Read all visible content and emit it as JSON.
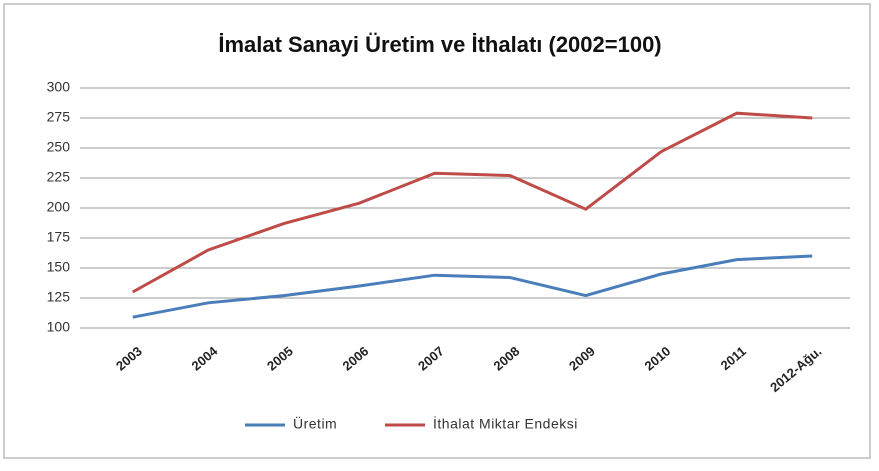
{
  "chart_data": {
    "type": "line",
    "title": "İmalat Sanayi Üretim ve İthalatı (2002=100)",
    "categories": [
      "2003",
      "2004",
      "2005",
      "2006",
      "2007",
      "2008",
      "2009",
      "2010",
      "2011",
      "2012-Ağu."
    ],
    "series": [
      {
        "name": "Üretim",
        "color": "#4a7ebb",
        "values": [
          109,
          121,
          127,
          135,
          144,
          142,
          127,
          145,
          157,
          160
        ]
      },
      {
        "name": "İthalat Miktar Endeksi",
        "color": "#be4b48",
        "values": [
          130,
          165,
          187,
          204,
          229,
          227,
          199,
          247,
          279,
          275
        ]
      }
    ],
    "ylim": [
      100,
      300
    ],
    "yticks": [
      100,
      125,
      150,
      175,
      200,
      225,
      250,
      275,
      300
    ],
    "grid": true,
    "legend": "bottom"
  }
}
